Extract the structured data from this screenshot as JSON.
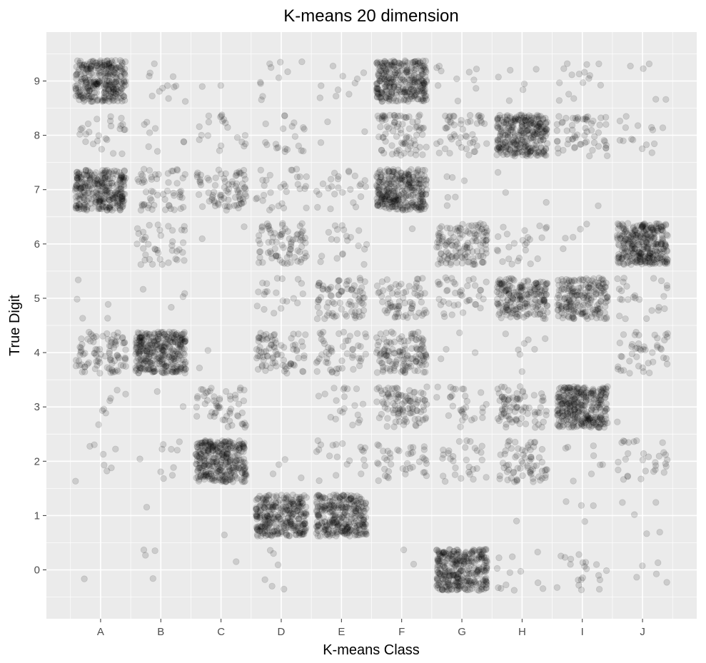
{
  "chart_data": {
    "type": "scatter",
    "title": "K-means 20 dimension",
    "xlabel": "K-means Class",
    "ylabel": "True Digit",
    "x_categories": [
      "A",
      "B",
      "C",
      "D",
      "E",
      "F",
      "G",
      "H",
      "I",
      "J"
    ],
    "y_ticks": [
      0,
      1,
      2,
      3,
      4,
      5,
      6,
      7,
      8,
      9
    ],
    "ylim": [
      -0.9,
      9.9
    ],
    "jitter": {
      "x": 0.42,
      "y": 0.38
    },
    "grid": true,
    "legend": "none",
    "point_color": "#000000",
    "point_alpha": 0.13,
    "panel_background": "#ebebeb",
    "grid_color": "#ffffff",
    "cells": [
      {
        "x": "A",
        "y": 9,
        "count": 300
      },
      {
        "x": "A",
        "y": 8,
        "count": 25
      },
      {
        "x": "A",
        "y": 7,
        "count": 300
      },
      {
        "x": "A",
        "y": 5,
        "count": 5
      },
      {
        "x": "A",
        "y": 4,
        "count": 90
      },
      {
        "x": "A",
        "y": 3,
        "count": 8
      },
      {
        "x": "A",
        "y": 2,
        "count": 8
      },
      {
        "x": "A",
        "y": 0,
        "count": 1
      },
      {
        "x": "B",
        "y": 9,
        "count": 12
      },
      {
        "x": "B",
        "y": 8,
        "count": 8
      },
      {
        "x": "B",
        "y": 7,
        "count": 55
      },
      {
        "x": "B",
        "y": 6,
        "count": 40
      },
      {
        "x": "B",
        "y": 5,
        "count": 4
      },
      {
        "x": "B",
        "y": 4,
        "count": 320
      },
      {
        "x": "B",
        "y": 3,
        "count": 2
      },
      {
        "x": "B",
        "y": 2,
        "count": 10
      },
      {
        "x": "B",
        "y": 1,
        "count": 1
      },
      {
        "x": "B",
        "y": 0,
        "count": 4
      },
      {
        "x": "C",
        "y": 9,
        "count": 2
      },
      {
        "x": "C",
        "y": 8,
        "count": 20
      },
      {
        "x": "C",
        "y": 7,
        "count": 80
      },
      {
        "x": "C",
        "y": 6,
        "count": 2
      },
      {
        "x": "C",
        "y": 4,
        "count": 2
      },
      {
        "x": "C",
        "y": 3,
        "count": 55
      },
      {
        "x": "C",
        "y": 2,
        "count": 320
      },
      {
        "x": "C",
        "y": 1,
        "count": 1
      },
      {
        "x": "C",
        "y": 0,
        "count": 1
      },
      {
        "x": "D",
        "y": 9,
        "count": 10
      },
      {
        "x": "D",
        "y": 8,
        "count": 20
      },
      {
        "x": "D",
        "y": 7,
        "count": 30
      },
      {
        "x": "D",
        "y": 6,
        "count": 80
      },
      {
        "x": "D",
        "y": 5,
        "count": 20
      },
      {
        "x": "D",
        "y": 4,
        "count": 80
      },
      {
        "x": "D",
        "y": 2,
        "count": 4
      },
      {
        "x": "D",
        "y": 1,
        "count": 300
      },
      {
        "x": "D",
        "y": 0,
        "count": 6
      },
      {
        "x": "E",
        "y": 9,
        "count": 10
      },
      {
        "x": "E",
        "y": 8,
        "count": 3
      },
      {
        "x": "E",
        "y": 7,
        "count": 25
      },
      {
        "x": "E",
        "y": 6,
        "count": 20
      },
      {
        "x": "E",
        "y": 5,
        "count": 80
      },
      {
        "x": "E",
        "y": 4,
        "count": 50
      },
      {
        "x": "E",
        "y": 3,
        "count": 20
      },
      {
        "x": "E",
        "y": 2,
        "count": 20
      },
      {
        "x": "E",
        "y": 1,
        "count": 300
      },
      {
        "x": "F",
        "y": 9,
        "count": 300
      },
      {
        "x": "F",
        "y": 8,
        "count": 80
      },
      {
        "x": "F",
        "y": 7,
        "count": 300
      },
      {
        "x": "F",
        "y": 6,
        "count": 1
      },
      {
        "x": "F",
        "y": 5,
        "count": 70
      },
      {
        "x": "F",
        "y": 4,
        "count": 130
      },
      {
        "x": "F",
        "y": 3,
        "count": 100
      },
      {
        "x": "F",
        "y": 2,
        "count": 40
      },
      {
        "x": "F",
        "y": 0,
        "count": 2
      },
      {
        "x": "G",
        "y": 9,
        "count": 10
      },
      {
        "x": "G",
        "y": 8,
        "count": 50
      },
      {
        "x": "G",
        "y": 7,
        "count": 6
      },
      {
        "x": "G",
        "y": 6,
        "count": 130
      },
      {
        "x": "G",
        "y": 5,
        "count": 40
      },
      {
        "x": "G",
        "y": 4,
        "count": 4
      },
      {
        "x": "G",
        "y": 3,
        "count": 30
      },
      {
        "x": "G",
        "y": 2,
        "count": 30
      },
      {
        "x": "G",
        "y": 0,
        "count": 320
      },
      {
        "x": "H",
        "y": 9,
        "count": 6
      },
      {
        "x": "H",
        "y": 8,
        "count": 300
      },
      {
        "x": "H",
        "y": 7,
        "count": 3
      },
      {
        "x": "H",
        "y": 6,
        "count": 25
      },
      {
        "x": "H",
        "y": 5,
        "count": 200
      },
      {
        "x": "H",
        "y": 4,
        "count": 8
      },
      {
        "x": "H",
        "y": 3,
        "count": 80
      },
      {
        "x": "H",
        "y": 2,
        "count": 70
      },
      {
        "x": "H",
        "y": 1,
        "count": 1
      },
      {
        "x": "H",
        "y": 0,
        "count": 12
      },
      {
        "x": "I",
        "y": 9,
        "count": 15
      },
      {
        "x": "I",
        "y": 8,
        "count": 60
      },
      {
        "x": "I",
        "y": 7,
        "count": 1
      },
      {
        "x": "I",
        "y": 6,
        "count": 5
      },
      {
        "x": "I",
        "y": 5,
        "count": 200
      },
      {
        "x": "I",
        "y": 3,
        "count": 320
      },
      {
        "x": "I",
        "y": 2,
        "count": 8
      },
      {
        "x": "I",
        "y": 1,
        "count": 4
      },
      {
        "x": "I",
        "y": 0,
        "count": 20
      },
      {
        "x": "J",
        "y": 9,
        "count": 5
      },
      {
        "x": "J",
        "y": 8,
        "count": 15
      },
      {
        "x": "J",
        "y": 6,
        "count": 320
      },
      {
        "x": "J",
        "y": 5,
        "count": 25
      },
      {
        "x": "J",
        "y": 4,
        "count": 45
      },
      {
        "x": "J",
        "y": 3,
        "count": 1
      },
      {
        "x": "J",
        "y": 2,
        "count": 30
      },
      {
        "x": "J",
        "y": 1,
        "count": 5
      },
      {
        "x": "J",
        "y": 0,
        "count": 5
      }
    ]
  }
}
